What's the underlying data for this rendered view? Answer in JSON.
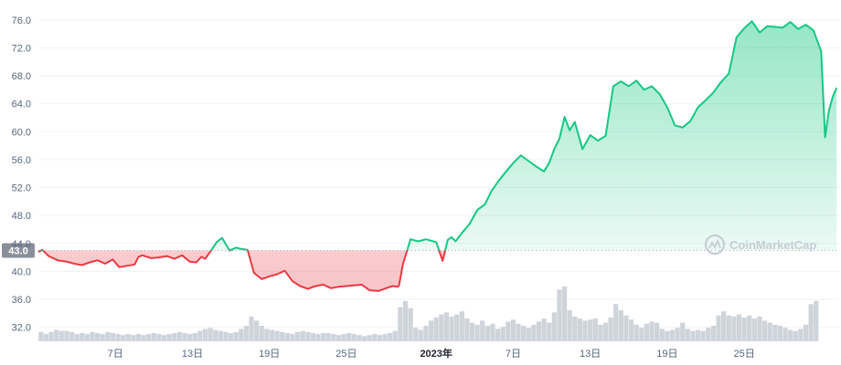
{
  "chart_data": {
    "type": "area",
    "y_axis": {
      "ticks": [
        "32.0",
        "36.0",
        "40.0",
        "44.0",
        "48.0",
        "52.0",
        "56.0",
        "60.0",
        "64.0",
        "68.0",
        "72.0",
        "76.0"
      ],
      "range": [
        30.0,
        77.8
      ]
    },
    "x_axis": {
      "ticks": [
        {
          "label": "7日",
          "day": 7,
          "strong": false
        },
        {
          "label": "13日",
          "day": 13,
          "strong": false
        },
        {
          "label": "19日",
          "day": 19,
          "strong": false
        },
        {
          "label": "25日",
          "day": 25,
          "strong": false
        },
        {
          "label": "2023年",
          "day": 32,
          "strong": true
        },
        {
          "label": "7日",
          "day": 38,
          "strong": false
        },
        {
          "label": "13日",
          "day": 44,
          "strong": false
        },
        {
          "label": "19日",
          "day": 50,
          "strong": false
        },
        {
          "label": "25日",
          "day": 56,
          "strong": false
        }
      ],
      "range": [
        1.0,
        63.4
      ]
    },
    "reference_line": {
      "value": 43.0,
      "label": "43.0"
    },
    "colors": {
      "above": "#16c784",
      "below": "#ea3943",
      "volume": "#cfd3da"
    },
    "price_series": {
      "x": [
        1.0,
        1.3,
        1.8,
        2.5,
        3.2,
        3.8,
        4.4,
        5.0,
        5.6,
        6.2,
        6.8,
        7.3,
        7.9,
        8.5,
        8.8,
        9.1,
        9.8,
        10.4,
        11.0,
        11.6,
        12.2,
        12.8,
        13.3,
        13.7,
        14.0,
        14.5,
        14.9,
        15.3,
        15.9,
        16.4,
        16.8,
        17.3,
        17.8,
        18.4,
        19.0,
        19.6,
        20.2,
        20.8,
        21.4,
        22.0,
        22.6,
        23.2,
        23.8,
        24.4,
        25.0,
        25.6,
        26.2,
        26.8,
        27.5,
        28.1,
        28.6,
        29.0,
        29.1,
        29.4,
        30.0,
        30.6,
        31.2,
        32.0,
        32.5,
        32.9,
        33.2,
        33.5,
        34.0,
        34.6,
        35.2,
        35.8,
        36.3,
        36.8,
        37.4,
        38.0,
        38.6,
        39.2,
        39.8,
        40.4,
        40.8,
        41.2,
        41.6,
        42.0,
        42.4,
        42.8,
        43.4,
        44.0,
        44.6,
        45.2,
        45.8,
        46.4,
        47.0,
        47.6,
        48.2,
        48.8,
        49.4,
        50.0,
        50.6,
        51.2,
        51.8,
        52.4,
        53.0,
        53.6,
        54.2,
        54.8,
        55.4,
        56.0,
        56.6,
        57.2,
        57.8,
        58.4,
        59.0,
        59.6,
        60.2,
        60.8,
        61.4,
        62.0,
        62.3,
        62.6,
        62.9,
        63.2
      ],
      "y": [
        42.8,
        43.1,
        42.2,
        41.6,
        41.4,
        41.1,
        40.9,
        41.3,
        41.6,
        41.1,
        41.7,
        40.6,
        40.8,
        41.0,
        42.1,
        42.3,
        41.9,
        42.0,
        42.2,
        41.8,
        42.3,
        41.4,
        41.3,
        42.1,
        41.8,
        43.1,
        44.2,
        44.8,
        43.0,
        43.4,
        43.2,
        43.1,
        39.8,
        38.9,
        39.3,
        39.6,
        40.1,
        38.6,
        37.9,
        37.5,
        37.9,
        38.1,
        37.6,
        37.8,
        37.9,
        38.0,
        38.1,
        37.3,
        37.2,
        37.6,
        37.9,
        37.8,
        38.0,
        41.0,
        44.6,
        44.3,
        44.6,
        44.2,
        41.5,
        44.5,
        44.9,
        44.3,
        45.5,
        46.8,
        48.8,
        49.6,
        51.5,
        52.8,
        54.2,
        55.5,
        56.6,
        55.8,
        55.0,
        54.3,
        55.5,
        57.5,
        59.0,
        62.1,
        60.2,
        61.4,
        57.5,
        59.5,
        58.7,
        59.4,
        66.5,
        67.2,
        66.5,
        67.3,
        66.0,
        66.5,
        65.4,
        63.5,
        60.9,
        60.6,
        61.5,
        63.5,
        64.5,
        65.6,
        67.1,
        68.3,
        73.5,
        74.8,
        75.8,
        74.2,
        75.1,
        75.0,
        74.9,
        75.7,
        74.7,
        75.3,
        74.5,
        71.5,
        59.2,
        63.0,
        65.0,
        66.3
      ]
    },
    "volume_series": {
      "x": [
        1.2,
        1.6,
        2.0,
        2.4,
        2.8,
        3.2,
        3.6,
        4.0,
        4.4,
        4.8,
        5.2,
        5.6,
        6.0,
        6.4,
        6.8,
        7.2,
        7.6,
        8.0,
        8.4,
        8.8,
        9.2,
        9.6,
        10.0,
        10.4,
        10.8,
        11.2,
        11.6,
        12.0,
        12.4,
        12.8,
        13.2,
        13.6,
        14.0,
        14.4,
        14.8,
        15.2,
        15.6,
        16.0,
        16.4,
        16.8,
        17.2,
        17.6,
        18.0,
        18.4,
        18.8,
        19.2,
        19.6,
        20.0,
        20.4,
        20.8,
        21.2,
        21.6,
        22.0,
        22.4,
        22.8,
        23.2,
        23.6,
        24.0,
        24.4,
        24.8,
        25.2,
        25.6,
        26.0,
        26.4,
        26.8,
        27.2,
        27.6,
        28.0,
        28.4,
        28.8,
        29.2,
        29.6,
        30.0,
        30.4,
        30.8,
        31.2,
        31.6,
        32.0,
        32.4,
        32.8,
        33.2,
        33.6,
        34.0,
        34.4,
        34.8,
        35.2,
        35.6,
        36.0,
        36.4,
        36.8,
        37.2,
        37.6,
        38.0,
        38.4,
        38.8,
        39.2,
        39.6,
        40.0,
        40.4,
        40.8,
        41.2,
        41.6,
        42.0,
        42.4,
        42.8,
        43.2,
        43.6,
        44.0,
        44.4,
        44.8,
        45.2,
        45.6,
        46.0,
        46.4,
        46.8,
        47.2,
        47.6,
        48.0,
        48.4,
        48.8,
        49.2,
        49.6,
        50.0,
        50.4,
        50.8,
        51.2,
        51.6,
        52.0,
        52.4,
        52.8,
        53.2,
        53.6,
        54.0,
        54.4,
        54.8,
        55.2,
        55.6,
        56.0,
        56.4,
        56.8,
        57.2,
        57.6,
        58.0,
        58.4,
        58.8,
        59.2,
        59.6,
        60.0,
        60.4,
        60.8,
        61.2,
        61.6,
        62.0,
        62.4,
        62.8,
        63.2
      ],
      "v": [
        0.9,
        0.7,
        0.9,
        1.1,
        1.0,
        1.0,
        0.9,
        0.7,
        0.8,
        0.7,
        0.9,
        0.8,
        0.7,
        0.9,
        0.8,
        0.7,
        0.6,
        0.7,
        0.6,
        0.7,
        0.6,
        0.7,
        0.8,
        0.7,
        0.6,
        0.7,
        0.8,
        0.9,
        0.8,
        0.7,
        0.8,
        1.0,
        1.2,
        1.3,
        1.1,
        1.0,
        0.9,
        0.8,
        0.9,
        1.2,
        1.5,
        2.4,
        2.0,
        1.5,
        1.2,
        1.1,
        1.0,
        0.9,
        0.8,
        0.7,
        0.9,
        1.0,
        0.9,
        0.8,
        0.7,
        0.8,
        0.8,
        0.7,
        0.6,
        0.7,
        0.8,
        0.7,
        0.6,
        0.5,
        0.6,
        0.7,
        0.6,
        0.7,
        0.8,
        1.0,
        3.3,
        3.9,
        3.2,
        1.3,
        1.1,
        1.5,
        2.0,
        2.3,
        2.6,
        2.8,
        2.4,
        2.6,
        2.9,
        2.2,
        1.8,
        1.6,
        2.0,
        1.5,
        1.7,
        1.2,
        1.4,
        1.9,
        2.1,
        1.7,
        1.5,
        1.3,
        1.6,
        1.9,
        2.2,
        1.8,
        2.8,
        5.0,
        5.3,
        3.0,
        2.4,
        2.2,
        2.0,
        2.1,
        2.2,
        1.6,
        1.8,
        2.3,
        3.6,
        3.0,
        2.5,
        2.1,
        1.6,
        1.3,
        1.7,
        1.9,
        1.8,
        1.2,
        1.0,
        1.1,
        1.3,
        1.8,
        1.2,
        1.0,
        1.1,
        1.0,
        1.3,
        1.5,
        2.5,
        2.9,
        2.5,
        2.4,
        2.6,
        2.3,
        2.5,
        2.2,
        2.4,
        2.0,
        1.8,
        1.6,
        1.5,
        1.3,
        1.1,
        1.0,
        1.2,
        1.6,
        3.6,
        3.9
      ]
    }
  },
  "watermark": {
    "text": "CoinMarketCap",
    "icon": "coinmarketcap-logo-icon"
  }
}
